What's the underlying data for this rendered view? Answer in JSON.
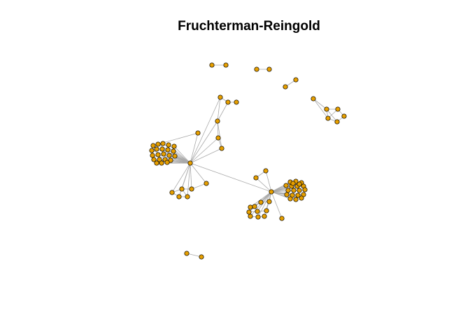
{
  "title": "Fruchterman-Reingold",
  "colors": {
    "node_fill": "#E69F00",
    "node_stroke": "#000000",
    "edge": "#A9A9A9",
    "background": "#FFFFFF"
  },
  "graph": {
    "layout": "Fruchterman-Reingold",
    "node_count": 86,
    "edge_count": 98,
    "components": 7
  }
}
